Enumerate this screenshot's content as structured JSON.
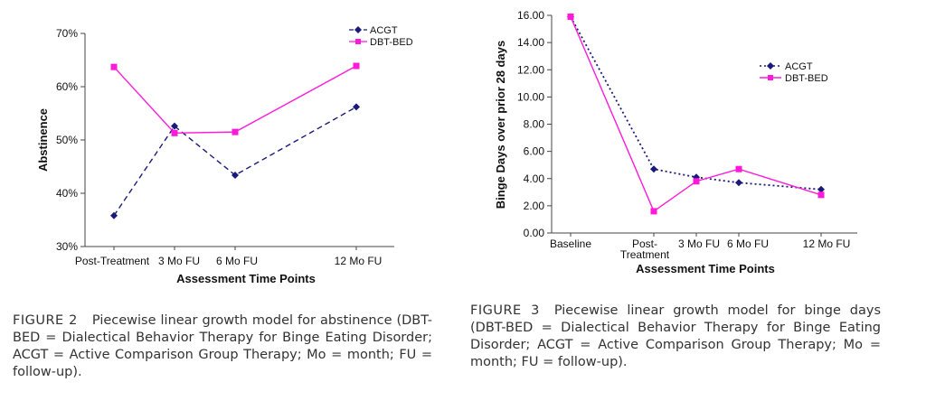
{
  "colors": {
    "acgt": "#1a1a7a",
    "dbt": "#ff1ad9",
    "axis": "#444444"
  },
  "chart_data": [
    {
      "type": "line",
      "categories": [
        "Post-Treatment",
        "3 Mo FU",
        "6 Mo FU",
        "12 Mo FU"
      ],
      "x": [
        0,
        3,
        6,
        12
      ],
      "ylim": [
        30,
        70
      ],
      "yticks": [
        "30%",
        "40%",
        "50%",
        "60%",
        "70%"
      ],
      "ytick_values": [
        30,
        40,
        50,
        60,
        70
      ],
      "xlabel": "Assessment Time Points",
      "ylabel": "Abstinence",
      "legend_position": "top-right",
      "series": [
        {
          "name": "ACGT",
          "values": [
            35.8,
            52.6,
            43.4,
            56.2
          ],
          "style": "dashed",
          "marker": "diamond"
        },
        {
          "name": "DBT-BED",
          "values": [
            63.7,
            51.3,
            51.5,
            63.9
          ],
          "style": "solid",
          "marker": "square"
        }
      ]
    },
    {
      "type": "line",
      "categories": [
        "Baseline",
        "Post-Treatment",
        "3 Mo FU",
        "6 Mo FU",
        "12 Mo FU"
      ],
      "x": [
        -4,
        0,
        3,
        6,
        12
      ],
      "ylim": [
        0,
        16
      ],
      "yticks": [
        "0.00",
        "2.00",
        "4.00",
        "6.00",
        "8.00",
        "10.00",
        "12.00",
        "14.00",
        "16.00"
      ],
      "ytick_values": [
        0,
        2,
        4,
        6,
        8,
        10,
        12,
        14,
        16
      ],
      "xlabel": "Assessment Time Points",
      "ylabel": "Binge Days over prior 28 days",
      "legend_position": "top-right",
      "series": [
        {
          "name": "ACGT",
          "values": [
            15.9,
            4.7,
            4.1,
            3.7,
            3.2
          ],
          "style": "dotted",
          "marker": "diamond"
        },
        {
          "name": "DBT-BED",
          "values": [
            15.9,
            1.6,
            3.8,
            4.7,
            2.8
          ],
          "style": "solid",
          "marker": "square"
        }
      ]
    }
  ],
  "fig2_tick_labels": {
    "t0": "Post-Treatment",
    "t1": "3 Mo FU",
    "t2": "6 Mo FU",
    "t3": "12 Mo FU"
  },
  "fig3_tick_labels": {
    "t0": "Baseline",
    "t1a": "Post-",
    "t1b": "Treatment",
    "t2": "3 Mo FU",
    "t3": "6 Mo FU",
    "t4": "12 Mo FU"
  },
  "captions": {
    "fig2": {
      "label": "FIGURE 2",
      "text": "Piecewise linear growth model for abstinence (DBT-BED = Dialectical Behavior Therapy for Binge Eating Disorder; ACGT = Active Comparison Group Therapy; Mo = month; FU = follow-up)."
    },
    "fig3": {
      "label": "FIGURE 3",
      "text": "Piecewise linear growth model for binge days (DBT-BED = Dialectical Behavior Therapy for Binge Eating Disorder; ACGT = Active Comparison Group Therapy; Mo = month; FU = follow-up)."
    }
  }
}
